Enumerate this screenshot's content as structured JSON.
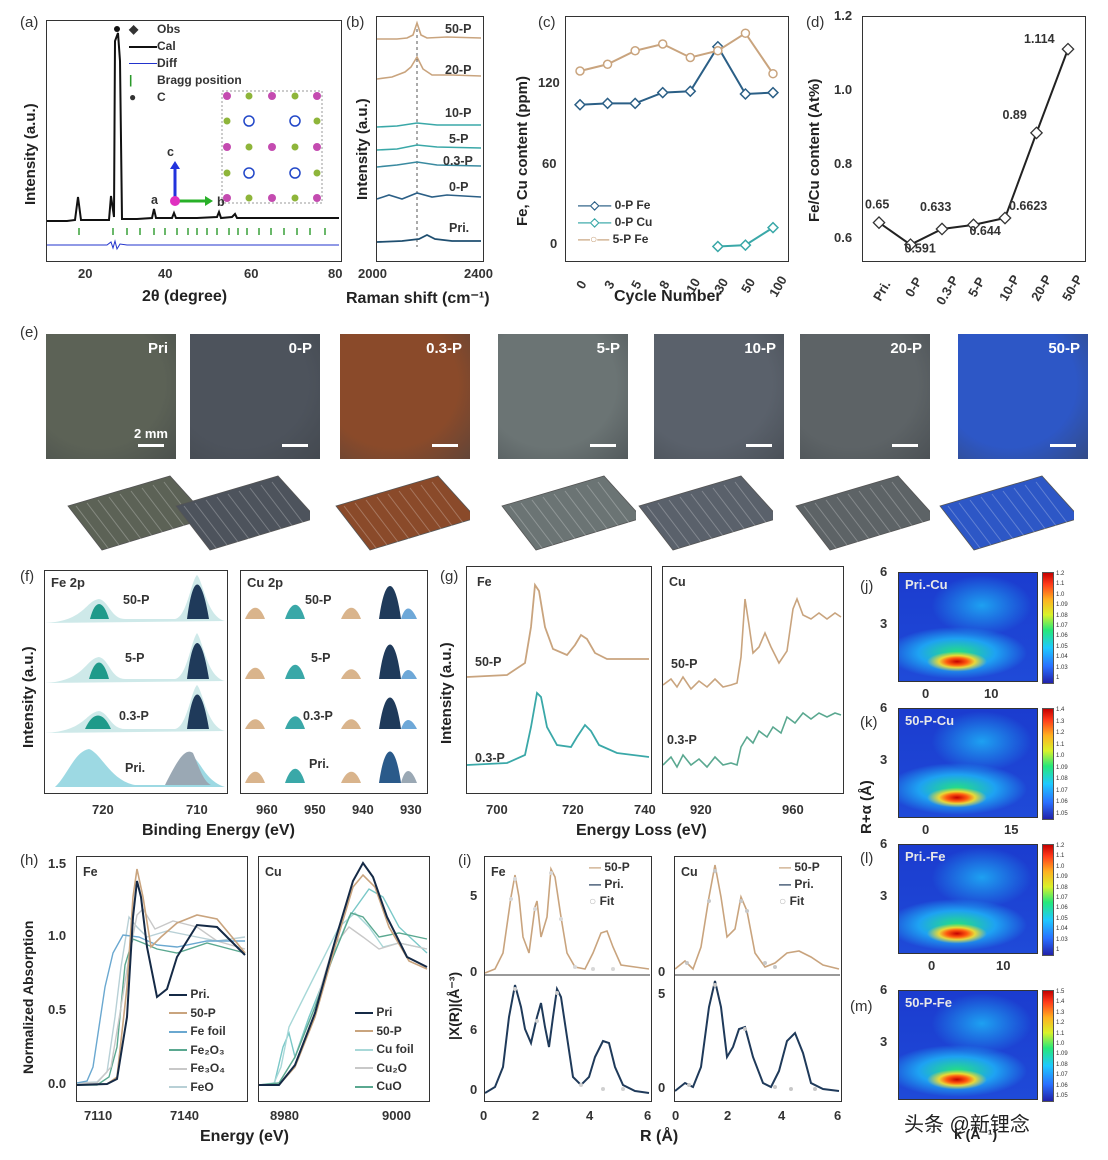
{
  "panel_a": {
    "label": "(a)",
    "ylabel": "Intensity (a.u.)",
    "xlabel": "2θ (degree)",
    "xticks": [
      "20",
      "40",
      "60",
      "80"
    ],
    "legend": [
      "Obs",
      "Cal",
      "Diff",
      "Bragg position",
      "C"
    ],
    "inset_axes": {
      "c": "c",
      "a": "a",
      "b": "b"
    }
  },
  "panel_b": {
    "label": "(b)",
    "ylabel": "Intensity (a.u.)",
    "xlabel": "Raman shift (cm⁻¹)",
    "xticks": [
      "2000",
      "2400"
    ],
    "series": [
      "50-P",
      "20-P",
      "10-P",
      "5-P",
      "0.3-P",
      "0-P",
      "Pri."
    ]
  },
  "panel_c": {
    "label": "(c)",
    "ylabel": "Fe, Cu content (ppm)",
    "xlabel": "Cycle Number",
    "yticks": [
      "0",
      "60",
      "120"
    ],
    "legend": [
      "0-P Fe",
      "0-P Cu",
      "5-P Fe"
    ]
  },
  "panel_d": {
    "label": "(d)",
    "ylabel": "Fe/Cu content (At%)",
    "yticks": [
      "0.6",
      "0.8",
      "1.0",
      "1.2"
    ],
    "point_labels": [
      "0.65",
      "0.591",
      "0.633",
      "0.644",
      "0.6623",
      "0.89",
      "1.114"
    ]
  },
  "chart_data": [
    {
      "type": "line",
      "title": "",
      "xlabel": "Cycle Number",
      "ylabel": "Fe, Cu content (ppm)",
      "categories": [
        "0",
        "3",
        "5",
        "8",
        "10",
        "30",
        "50",
        "100"
      ],
      "ylim": [
        -10,
        170
      ],
      "series": [
        {
          "name": "0-P Fe",
          "values": [
            105,
            106,
            106,
            114,
            115,
            148,
            113,
            114
          ],
          "color": "#2b5f86"
        },
        {
          "name": "0-P Cu",
          "values": [
            null,
            null,
            null,
            null,
            null,
            0,
            1,
            14
          ],
          "color": "#3aa8a8"
        },
        {
          "name": "5-P Fe",
          "values": [
            130,
            135,
            145,
            150,
            140,
            145,
            158,
            128
          ],
          "color": "#c9a47e"
        }
      ]
    },
    {
      "type": "line",
      "title": "",
      "xlabel": "",
      "ylabel": "Fe/Cu content (At%)",
      "categories": [
        "Pri.",
        "0-P",
        "0.3-P",
        "5-P",
        "10-P",
        "20-P",
        "50-P"
      ],
      "ylim": [
        0.55,
        1.2
      ],
      "series": [
        {
          "name": "",
          "values": [
            0.65,
            0.591,
            0.633,
            0.644,
            0.6623,
            0.89,
            1.114
          ],
          "color": "#222222"
        }
      ]
    }
  ],
  "panel_e": {
    "label": "(e)",
    "photos": [
      "Pri",
      "0-P",
      "0.3-P",
      "5-P",
      "10-P",
      "20-P",
      "50-P"
    ],
    "scale": "2 mm",
    "colors": [
      "#5c6256",
      "#4d535c",
      "#8a4a2a",
      "#6b7474",
      "#5a616b",
      "#5d6366",
      "#2d57c6"
    ]
  },
  "panel_f": {
    "label": "(f)",
    "fe_title": "Fe 2p",
    "cu_title": "Cu 2p",
    "ylabel": "Intensity (a.u.)",
    "xlabel": "Binding Energy (eV)",
    "fe_xticks": [
      "720",
      "710"
    ],
    "cu_xticks": [
      "960",
      "950",
      "940",
      "930"
    ],
    "rows": [
      "50-P",
      "5-P",
      "0.3-P",
      "Pri."
    ]
  },
  "panel_g": {
    "label": "(g)",
    "fe_title": "Fe",
    "cu_title": "Cu",
    "ylabel": "Intensity (a.u.)",
    "xlabel": "Energy Loss (eV)",
    "fe_xticks": [
      "700",
      "720",
      "740"
    ],
    "cu_xticks": [
      "920",
      "960"
    ],
    "rows": [
      "50-P",
      "0.3-P"
    ]
  },
  "panel_h": {
    "label": "(h)",
    "fe_title": "Fe",
    "cu_title": "Cu",
    "ylabel": "Normalized Absorption",
    "xlabel": "Energy (eV)",
    "yticks": [
      "0.0",
      "0.5",
      "1.0",
      "1.5"
    ],
    "fe_xticks": [
      "7110",
      "7140"
    ],
    "cu_xticks": [
      "8980",
      "9000"
    ],
    "fe_legend": [
      "Pri.",
      "50-P",
      "Fe foil",
      "Fe₂O₃",
      "Fe₃O₄",
      "FeO"
    ],
    "cu_legend": [
      "Pri",
      "50-P",
      "Cu foil",
      "Cu₂O",
      "CuO"
    ]
  },
  "panel_i": {
    "label": "(i)",
    "fe_title": "Fe",
    "cu_title": "Cu",
    "ylabel": "|X(R)|(Å⁻³)",
    "xlabel": "R (Å)",
    "xticks": [
      "0",
      "2",
      "4",
      "6"
    ],
    "legend": [
      "50-P",
      "Pri.",
      "Fit"
    ],
    "left_yticks": [
      "5",
      "0",
      "6",
      "0"
    ],
    "right_yticks": [
      "0",
      "5",
      "0"
    ]
  },
  "panel_jklm": {
    "ylabel": "R+α (Å)",
    "xlabel": "k (Å⁻¹)",
    "maps": [
      {
        "label": "(j)",
        "title": "Pri.-Cu",
        "yticks": [
          "6",
          "3"
        ],
        "xticks": [
          "0",
          "10"
        ],
        "cbar": [
          "1.2",
          "1.1",
          "1.0",
          "1.09",
          "1.08",
          "1.07",
          "1.06",
          "1.05",
          "1.04",
          "1.03",
          "1"
        ]
      },
      {
        "label": "(k)",
        "title": "50-P-Cu",
        "yticks": [
          "6",
          "3"
        ],
        "xticks": [
          "0",
          "15"
        ],
        "cbar": [
          "1.4",
          "1.3",
          "1.2",
          "1.1",
          "1.0",
          "1.09",
          "1.08",
          "1.07",
          "1.06",
          "1.05"
        ]
      },
      {
        "label": "(l)",
        "title": "Pri.-Fe",
        "yticks": [
          "6",
          "3"
        ],
        "xticks": [
          "0",
          "10"
        ],
        "cbar": [
          "1.2",
          "1.1",
          "1.0",
          "1.09",
          "1.08",
          "1.07",
          "1.06",
          "1.05",
          "1.04",
          "1.03",
          "1"
        ]
      },
      {
        "label": "(m)",
        "title": "50-P-Fe",
        "yticks": [
          "6",
          "3"
        ],
        "xticks": [],
        "cbar": [
          "1.5",
          "1.4",
          "1.3",
          "1.2",
          "1.1",
          "1.0",
          "1.09",
          "1.08",
          "1.07",
          "1.06",
          "1.05"
        ]
      }
    ]
  },
  "watermark": "头条 @新锂念"
}
